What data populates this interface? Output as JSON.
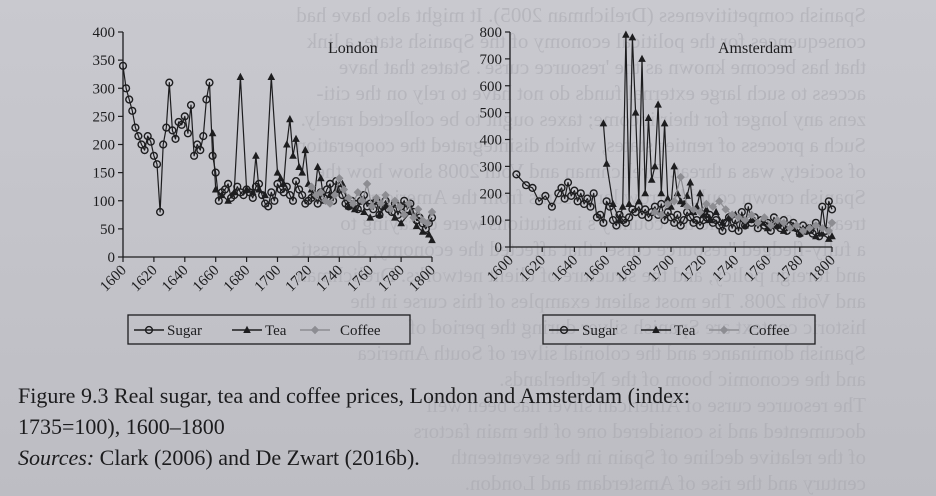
{
  "caption": {
    "figure_label": "Figure 9.3",
    "title_line1": "Real sugar, tea and coffee prices, London and Amsterdam (index:",
    "title_line2": "1735=100), 1600–1800",
    "sources_label": "Sources:",
    "sources_text": "Clark (2006) and De Zwart (2016b)."
  },
  "colors": {
    "sugar": "#1d1d1f",
    "tea": "#1d1d1f",
    "coffee": "#8d8d92",
    "axis": "#1d1d1f"
  },
  "chart_data": [
    {
      "type": "line",
      "title": "London",
      "xlabel": "",
      "ylabel": "",
      "xlim": [
        1600,
        1800
      ],
      "ylim": [
        0,
        400
      ],
      "x_ticks": [
        "1600",
        "1620",
        "1640",
        "1660",
        "1680",
        "1700",
        "1720",
        "1740",
        "1760",
        "1780",
        "1800"
      ],
      "y_ticks": [
        "0",
        "50",
        "100",
        "150",
        "200",
        "250",
        "300",
        "350",
        "400"
      ],
      "grid": false,
      "legend_placement": "bottom",
      "legend": [
        "Sugar",
        "Tea",
        "Coffee"
      ],
      "series": [
        {
          "name": "Sugar",
          "marker": "circle",
          "x": [
            1600,
            1602,
            1604,
            1606,
            1608,
            1610,
            1612,
            1614,
            1616,
            1618,
            1620,
            1622,
            1624,
            1626,
            1628,
            1630,
            1632,
            1634,
            1636,
            1638,
            1640,
            1642,
            1644,
            1646,
            1648,
            1650,
            1652,
            1654,
            1656,
            1658,
            1660,
            1662,
            1664,
            1666,
            1668,
            1670,
            1672,
            1674,
            1676,
            1678,
            1680,
            1682,
            1684,
            1686,
            1688,
            1690,
            1692,
            1694,
            1696,
            1698,
            1700,
            1702,
            1704,
            1706,
            1708,
            1710,
            1712,
            1714,
            1716,
            1718,
            1720,
            1722,
            1724,
            1726,
            1728,
            1730,
            1732,
            1734,
            1736,
            1738,
            1740,
            1742,
            1744,
            1746,
            1748,
            1750,
            1752,
            1754,
            1756,
            1758,
            1760,
            1762,
            1764,
            1766,
            1768,
            1770,
            1772,
            1774,
            1776,
            1778,
            1780,
            1782,
            1784,
            1786,
            1788,
            1790,
            1792,
            1794,
            1796,
            1798,
            1800
          ],
          "values": [
            340,
            300,
            280,
            260,
            230,
            215,
            200,
            190,
            215,
            205,
            180,
            165,
            80,
            200,
            230,
            310,
            225,
            210,
            240,
            235,
            250,
            220,
            270,
            180,
            200,
            190,
            215,
            280,
            310,
            180,
            150,
            100,
            115,
            120,
            130,
            105,
            110,
            125,
            115,
            110,
            120,
            115,
            105,
            125,
            130,
            110,
            95,
            90,
            115,
            100,
            130,
            120,
            115,
            125,
            110,
            100,
            135,
            120,
            110,
            95,
            100,
            105,
            110,
            95,
            115,
            105,
            120,
            130,
            100,
            135,
            120,
            110,
            95,
            90,
            100,
            95,
            85,
            100,
            110,
            90,
            95,
            85,
            100,
            75,
            90,
            100,
            85,
            80,
            95,
            75,
            90,
            100,
            85,
            95,
            80,
            65,
            70,
            60,
            50,
            60,
            70
          ]
        },
        {
          "name": "Tea",
          "marker": "triangle",
          "x": [
            1658,
            1660,
            1664,
            1668,
            1672,
            1676,
            1680,
            1684,
            1686,
            1688,
            1692,
            1696,
            1700,
            1702,
            1704,
            1706,
            1708,
            1710,
            1712,
            1714,
            1716,
            1718,
            1720,
            1722,
            1724,
            1726,
            1728,
            1730,
            1734,
            1738,
            1742,
            1746,
            1750,
            1756,
            1760,
            1766,
            1770,
            1776,
            1780,
            1786,
            1790,
            1794,
            1798,
            1800
          ],
          "values": [
            220,
            120,
            110,
            100,
            115,
            320,
            120,
            115,
            180,
            120,
            110,
            320,
            150,
            140,
            130,
            200,
            245,
            180,
            210,
            160,
            150,
            190,
            130,
            120,
            110,
            160,
            140,
            100,
            110,
            120,
            130,
            90,
            85,
            80,
            70,
            75,
            90,
            70,
            60,
            80,
            55,
            45,
            40,
            30
          ]
        },
        {
          "name": "Coffee",
          "marker": "diamond",
          "x": [
            1722,
            1725,
            1728,
            1731,
            1734,
            1737,
            1740,
            1743,
            1746,
            1749,
            1752,
            1755,
            1758,
            1761,
            1764,
            1767,
            1770,
            1773,
            1776,
            1779,
            1782,
            1785,
            1788,
            1791,
            1794,
            1797,
            1800
          ],
          "values": [
            125,
            110,
            115,
            100,
            95,
            110,
            140,
            120,
            105,
            95,
            115,
            100,
            130,
            90,
            105,
            95,
            110,
            85,
            100,
            90,
            75,
            95,
            70,
            85,
            65,
            60,
            80
          ]
        }
      ]
    },
    {
      "type": "line",
      "title": "Amsterdam",
      "xlabel": "",
      "ylabel": "",
      "xlim": [
        1600,
        1800
      ],
      "ylim": [
        0,
        800
      ],
      "x_ticks": [
        "1600",
        "1620",
        "1640",
        "1660",
        "1680",
        "1700",
        "1720",
        "1740",
        "1760",
        "1780",
        "1800"
      ],
      "y_ticks": [
        "0",
        "100",
        "200",
        "300",
        "400",
        "500",
        "600",
        "700",
        "800"
      ],
      "grid": false,
      "legend_placement": "bottom",
      "legend": [
        "Sugar",
        "Tea",
        "Coffee"
      ],
      "series": [
        {
          "name": "Sugar",
          "marker": "circle",
          "x": [
            1604,
            1610,
            1614,
            1618,
            1622,
            1626,
            1630,
            1632,
            1634,
            1636,
            1638,
            1640,
            1642,
            1644,
            1646,
            1648,
            1650,
            1652,
            1654,
            1656,
            1658,
            1660,
            1662,
            1664,
            1666,
            1668,
            1670,
            1672,
            1674,
            1676,
            1678,
            1680,
            1682,
            1684,
            1686,
            1688,
            1690,
            1692,
            1694,
            1696,
            1698,
            1700,
            1702,
            1704,
            1706,
            1708,
            1710,
            1712,
            1714,
            1716,
            1718,
            1720,
            1722,
            1724,
            1726,
            1728,
            1730,
            1732,
            1734,
            1736,
            1738,
            1740,
            1742,
            1744,
            1746,
            1748,
            1750,
            1752,
            1754,
            1756,
            1758,
            1760,
            1762,
            1764,
            1766,
            1768,
            1770,
            1772,
            1774,
            1776,
            1778,
            1780,
            1782,
            1784,
            1786,
            1788,
            1790,
            1792,
            1794,
            1796,
            1798,
            1800
          ],
          "values": [
            270,
            230,
            220,
            170,
            190,
            150,
            200,
            220,
            180,
            240,
            190,
            210,
            170,
            200,
            160,
            180,
            150,
            200,
            110,
            120,
            90,
            170,
            150,
            100,
            80,
            120,
            100,
            90,
            110,
            140,
            130,
            150,
            120,
            140,
            110,
            130,
            150,
            120,
            160,
            100,
            130,
            110,
            90,
            120,
            80,
            100,
            130,
            110,
            90,
            100,
            80,
            100,
            110,
            120,
            90,
            100,
            80,
            60,
            90,
            110,
            70,
            100,
            60,
            130,
            80,
            150,
            90,
            110,
            70,
            100,
            80,
            90,
            60,
            110,
            80,
            70,
            100,
            60,
            80,
            90,
            70,
            50,
            80,
            60,
            70,
            50,
            90,
            40,
            150,
            60,
            170,
            140
          ]
        },
        {
          "name": "Tea",
          "marker": "triangle",
          "x": [
            1658,
            1660,
            1664,
            1668,
            1670,
            1672,
            1674,
            1676,
            1678,
            1680,
            1682,
            1684,
            1686,
            1688,
            1690,
            1692,
            1694,
            1696,
            1698,
            1700,
            1702,
            1704,
            1706,
            1708,
            1710,
            1712,
            1714,
            1716,
            1718,
            1720,
            1722,
            1724,
            1728,
            1732,
            1736,
            1740,
            1746,
            1750,
            1756,
            1760,
            1766,
            1770,
            1776,
            1780,
            1786,
            1790,
            1794,
            1798,
            1800
          ],
          "values": [
            460,
            310,
            160,
            100,
            150,
            790,
            160,
            780,
            500,
            170,
            700,
            200,
            480,
            250,
            300,
            530,
            200,
            460,
            180,
            150,
            300,
            200,
            170,
            160,
            190,
            240,
            130,
            150,
            200,
            120,
            140,
            100,
            130,
            90,
            110,
            120,
            80,
            100,
            90,
            70,
            80,
            60,
            70,
            50,
            60,
            40,
            50,
            30,
            40
          ]
        },
        {
          "name": "Coffee",
          "marker": "diamond",
          "x": [
            1690,
            1694,
            1698,
            1702,
            1706,
            1710,
            1714,
            1718,
            1722,
            1726,
            1730,
            1734,
            1738,
            1742,
            1746,
            1750,
            1754,
            1758,
            1762,
            1766,
            1770,
            1774,
            1778,
            1782,
            1786,
            1790,
            1794,
            1798,
            1800
          ],
          "values": [
            130,
            120,
            160,
            170,
            260,
            150,
            140,
            130,
            160,
            150,
            170,
            140,
            120,
            110,
            100,
            120,
            90,
            110,
            80,
            100,
            90,
            70,
            80,
            60,
            70,
            80,
            70,
            60,
            90
          ]
        }
      ]
    }
  ]
}
